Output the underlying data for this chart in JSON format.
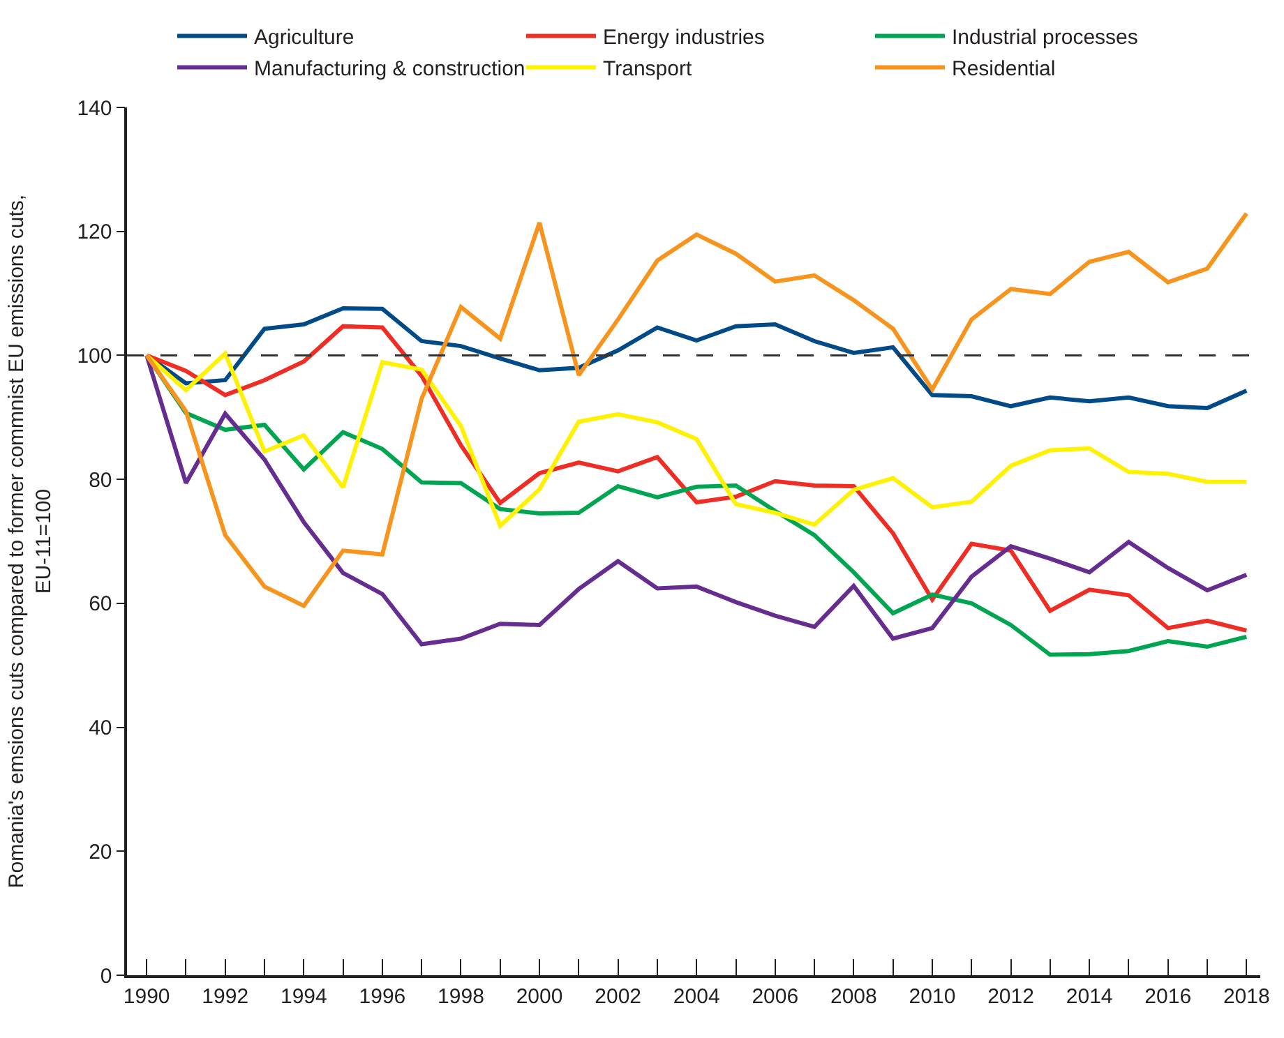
{
  "chart_data": {
    "type": "line",
    "ylabel": "Romania's emsions cuts compared to former commnist EU emissions cuts,\nEU-11=100",
    "x": [
      1990,
      1991,
      1992,
      1993,
      1994,
      1995,
      1996,
      1997,
      1998,
      1999,
      2000,
      2001,
      2002,
      2003,
      2004,
      2005,
      2006,
      2007,
      2008,
      2009,
      2010,
      2011,
      2012,
      2013,
      2014,
      2015,
      2016,
      2017,
      2018
    ],
    "series": [
      {
        "name": "Agriculture",
        "color": "#004a87",
        "values": [
          100,
          95.5,
          96,
          104.3,
          105,
          107.6,
          107.5,
          102.3,
          101.5,
          99.5,
          97.6,
          98,
          100.8,
          104.5,
          102.4,
          104.7,
          105,
          102.3,
          100.4,
          101.3,
          93.6,
          93.4,
          91.8,
          93.2,
          92.6,
          93.2,
          91.8,
          91.5,
          94.3
        ]
      },
      {
        "name": "Energy industries",
        "color": "#ee2e24",
        "values": [
          100,
          97.5,
          93.6,
          96,
          99,
          104.7,
          104.5,
          96.7,
          85.5,
          76.2,
          81,
          82.7,
          81.3,
          83.6,
          76.3,
          77.2,
          79.7,
          79,
          78.9,
          71.3,
          60.6,
          69.6,
          68.5,
          58.8,
          62.2,
          61.3,
          56,
          57.2,
          55.6
        ]
      },
      {
        "name": "Industrial processes",
        "color": "#00a551",
        "values": [
          100,
          90.7,
          88,
          88.8,
          81.6,
          87.6,
          84.9,
          79.5,
          79.4,
          75.2,
          74.5,
          74.6,
          78.9,
          77.1,
          78.8,
          79,
          74.9,
          71,
          65,
          58.4,
          61.4,
          60,
          56.5,
          51.7,
          51.8,
          52.3,
          53.9,
          53,
          54.6
        ]
      },
      {
        "name": "Manufacturing & construction",
        "color": "#662d91",
        "values": [
          100,
          79.4,
          90.6,
          83.2,
          73.1,
          64.9,
          61.5,
          53.4,
          54.3,
          56.7,
          56.5,
          62.3,
          66.8,
          62.4,
          62.7,
          60.2,
          58,
          56.2,
          62.8,
          54.3,
          56,
          64.3,
          69.2,
          67.2,
          65,
          69.9,
          65.7,
          62.1,
          64.6
        ]
      },
      {
        "name": "Transport",
        "color": "#fff200",
        "values": [
          100,
          94.4,
          100.3,
          84.5,
          87.1,
          78.7,
          98.9,
          97.7,
          88.6,
          72.5,
          78.4,
          89.3,
          90.5,
          89.2,
          86.5,
          76,
          74.6,
          72.7,
          78.3,
          80.2,
          75.5,
          76.4,
          82.2,
          84.7,
          85,
          81.2,
          80.9,
          79.6,
          79.6
        ]
      },
      {
        "name": "Residential",
        "color": "#f7941d",
        "values": [
          100,
          91,
          71,
          62.7,
          59.6,
          68.5,
          67.9,
          93,
          107.8,
          102.7,
          121.4,
          96.8,
          105.8,
          115.3,
          119.5,
          116.4,
          111.9,
          112.9,
          108.9,
          104.3,
          94.5,
          105.8,
          110.7,
          109.9,
          115.1,
          116.7,
          111.8,
          114,
          122.9
        ]
      }
    ],
    "xlim": [
      1989.5,
      2018.35
    ],
    "xticks": [
      1990,
      {
        "value": 1991,
        "label": null
      },
      1992,
      {
        "value": 1993,
        "label": null
      },
      1994,
      {
        "value": 1995,
        "label": null
      },
      1996,
      {
        "value": 1997,
        "label": null
      },
      1998,
      {
        "value": 1999,
        "label": null
      },
      2000,
      {
        "value": 2001,
        "label": null
      },
      2002,
      {
        "value": 2003,
        "label": null
      },
      2004,
      {
        "value": 2005,
        "label": null
      },
      2006,
      {
        "value": 2007,
        "label": null
      },
      2008,
      {
        "value": 2009,
        "label": null
      },
      2010,
      {
        "value": 2011,
        "label": null
      },
      2012,
      {
        "value": 2013,
        "label": null
      },
      2014,
      {
        "value": 2015,
        "label": null
      },
      2016,
      {
        "value": 2017,
        "label": null
      },
      2018
    ],
    "ylim": [
      0,
      140
    ],
    "yticks": [
      0,
      20,
      40,
      60,
      80,
      100,
      120,
      140
    ],
    "ref_lines": [
      {
        "axis": "y",
        "value": 100,
        "color": "#333333",
        "line_style": "dashed"
      }
    ],
    "legend": "top",
    "marker": "none",
    "line_style": "solid"
  }
}
